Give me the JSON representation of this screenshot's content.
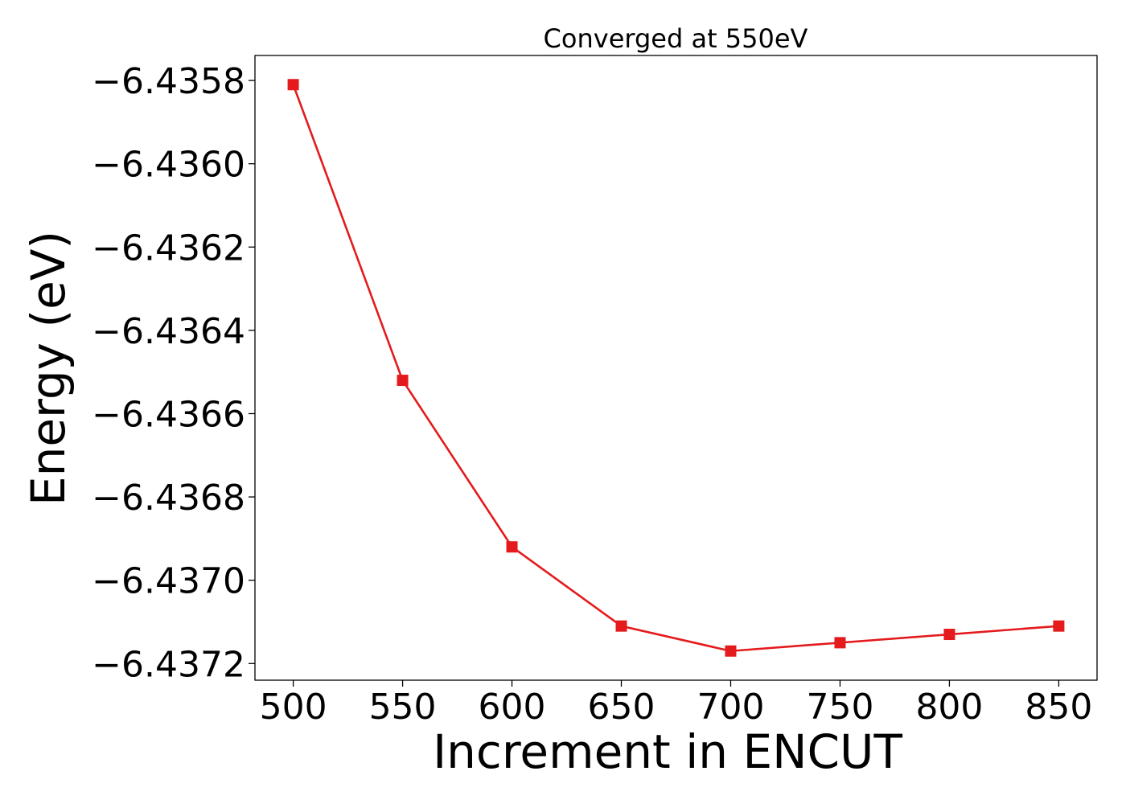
{
  "chart_data": {
    "type": "line",
    "title": "Converged at 550eV",
    "xlabel": "Increment in ENCUT",
    "ylabel": "Energy (eV)",
    "x": [
      500,
      550,
      600,
      650,
      700,
      750,
      800,
      850
    ],
    "series": [
      {
        "values": [
          -6.43581,
          -6.43652,
          -6.43692,
          -6.43711,
          -6.43717,
          -6.43715,
          -6.43713,
          -6.43711
        ],
        "color": "#e41a1c",
        "marker": "square"
      }
    ],
    "x_ticks": [
      500,
      550,
      600,
      650,
      700,
      750,
      800,
      850
    ],
    "x_tick_labels": [
      "500",
      "550",
      "600",
      "650",
      "700",
      "750",
      "800",
      "850"
    ],
    "y_ticks": [
      -6.4358,
      -6.436,
      -6.4362,
      -6.4364,
      -6.4366,
      -6.4368,
      -6.437,
      -6.4372
    ],
    "y_tick_labels": [
      "−6.4358",
      "−6.4360",
      "−6.4362",
      "−6.4364",
      "−6.4366",
      "−6.4368",
      "−6.4370",
      "−6.4372"
    ],
    "xlim": [
      482.5,
      867.5
    ],
    "ylim": [
      -6.43724,
      -6.43574
    ],
    "grid": false
  }
}
